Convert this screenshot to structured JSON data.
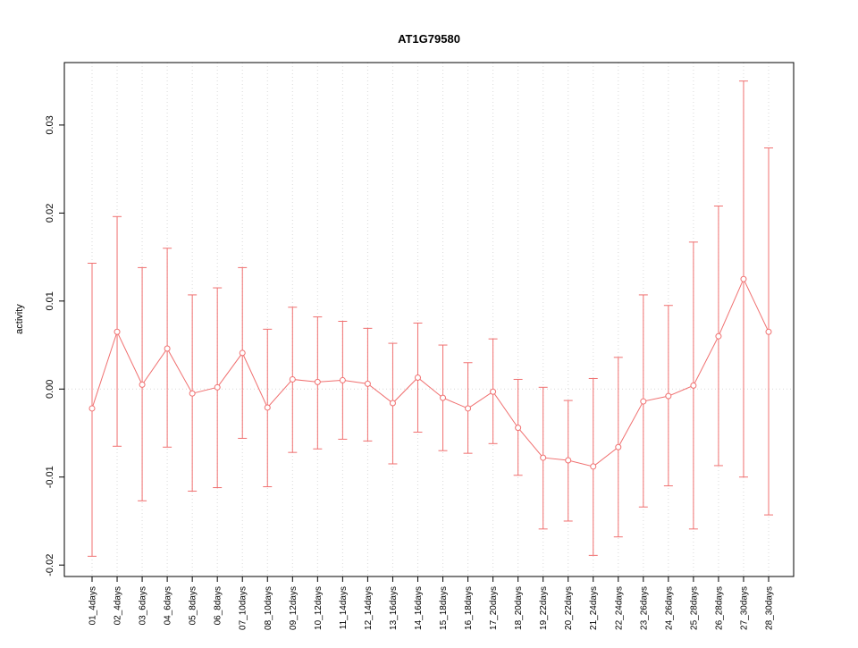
{
  "chart_data": {
    "type": "line",
    "title": "AT1G79580",
    "xlabel": "",
    "ylabel": "activity",
    "ylim": [
      -0.0213,
      0.0371
    ],
    "yticks": [
      -0.02,
      -0.01,
      0.0,
      0.01,
      0.02,
      0.03
    ],
    "grid": "vertical dotted gridlines at each category, dotted horizontal line at y=0",
    "legend_position": "none",
    "categories": [
      "01_4days",
      "02_4days",
      "03_6days",
      "04_6days",
      "05_8days",
      "06_8days",
      "07_10days",
      "08_10days",
      "09_12days",
      "10_12days",
      "11_14days",
      "12_14days",
      "13_16days",
      "14_16days",
      "15_18days",
      "16_18days",
      "17_20days",
      "18_20days",
      "19_22days",
      "20_22days",
      "21_24days",
      "22_24days",
      "23_26days",
      "24_26days",
      "25_28days",
      "26_28days",
      "27_30days",
      "28_30days"
    ],
    "series": [
      {
        "name": "activity",
        "values": [
          -0.0022,
          0.0065,
          0.0005,
          0.0046,
          -0.0005,
          0.0002,
          0.0041,
          -0.0021,
          0.0011,
          0.0008,
          0.001,
          0.0006,
          -0.0016,
          0.0013,
          -0.001,
          -0.0022,
          -0.0003,
          -0.0044,
          -0.0078,
          -0.0081,
          -0.0088,
          -0.0066,
          -0.0014,
          -0.0008,
          0.0004,
          0.006,
          0.0125,
          0.0065
        ],
        "upper": [
          0.0143,
          0.0196,
          0.0138,
          0.016,
          0.0107,
          0.0115,
          0.0138,
          0.0068,
          0.0093,
          0.0082,
          0.0077,
          0.0069,
          0.0052,
          0.0075,
          0.005,
          0.003,
          0.0057,
          0.0011,
          0.0002,
          -0.0013,
          0.0012,
          0.0036,
          0.0107,
          0.0095,
          0.0167,
          0.0208,
          0.035,
          0.0274
        ],
        "lower": [
          -0.019,
          -0.0065,
          -0.0127,
          -0.0066,
          -0.0116,
          -0.0112,
          -0.0056,
          -0.0111,
          -0.0072,
          -0.0068,
          -0.0057,
          -0.0059,
          -0.0085,
          -0.0049,
          -0.007,
          -0.0073,
          -0.0062,
          -0.0098,
          -0.0159,
          -0.015,
          -0.0189,
          -0.0168,
          -0.0134,
          -0.011,
          -0.0159,
          -0.0087,
          -0.01,
          -0.0143
        ]
      }
    ],
    "colors": {
      "series": "#f07070",
      "grid": "#d9d9d9",
      "zero_line": "#d9d9d9",
      "axis": "#000000",
      "point_fill": "#ffffff"
    }
  }
}
